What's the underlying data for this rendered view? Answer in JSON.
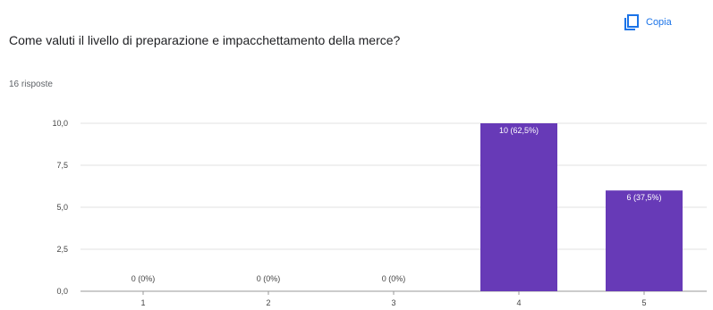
{
  "header": {
    "question": "Come valuti il livello di preparazione e impacchettamento della merce?",
    "responses": "16 risposte",
    "copy_label": "Copia"
  },
  "colors": {
    "bar": "#673ab7",
    "accent": "#1a73e8",
    "grid": "#e0e0e0"
  },
  "chart_data": {
    "type": "bar",
    "categories": [
      "1",
      "2",
      "3",
      "4",
      "5"
    ],
    "values": [
      0,
      0,
      0,
      10,
      6
    ],
    "data_labels": [
      "0 (0%)",
      "0 (0%)",
      "0 (0%)",
      "10 (62,5%)",
      "6 (37,5%)"
    ],
    "y_ticks": [
      "0,0",
      "2,5",
      "5,0",
      "7,5",
      "10,0"
    ],
    "ylim": [
      0,
      10
    ],
    "title": "",
    "xlabel": "",
    "ylabel": "",
    "grid": true,
    "legend": "none"
  }
}
